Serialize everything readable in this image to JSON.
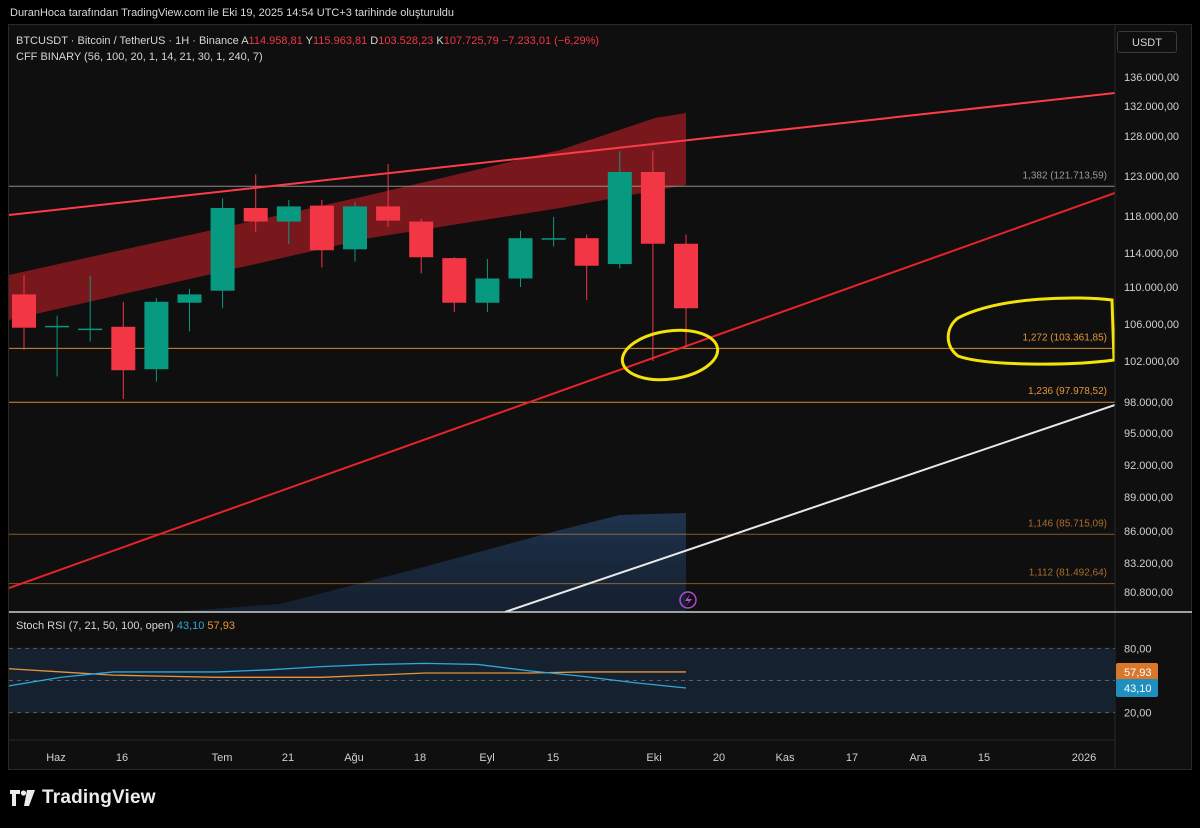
{
  "attribution": "DuranHoca tarafından TradingView.com ile Eki 19, 2025 14:54 UTC+3 tarihinde oluşturuldu",
  "brand": "TradingView",
  "currency_button": "USDT",
  "legend": {
    "symbol": "BTCUSDT · Bitcoin / TetherUS · 1H · Binance",
    "o_label": "A",
    "o_value": "114.958,81",
    "h_label": "Y",
    "h_value": "115.963,81",
    "l_label": "D",
    "l_value": "103.528,23",
    "c_label": "K",
    "c_value": "107.725,79",
    "change": "−7.233,01 (−6,29%)",
    "indicator": "CFF BINARY (56, 100, 20, 1, 14, 21, 30, 1, 240, 7)"
  },
  "stoch_legend": {
    "name": "Stoch RSI (7, 21, 50, 100, open)",
    "k_value": "43,10",
    "d_value": "57,93"
  },
  "colors": {
    "up": "#089981",
    "down": "#f23645",
    "band": "#8b1a1e",
    "trend_red": "#e8232c",
    "fib": "#e8943a",
    "white_line": "#e8e8e8",
    "stoch_k": "#2fa7d9",
    "stoch_d": "#e8943a",
    "highlight_circle": "#f4e20a"
  },
  "chart_data": {
    "type": "candlestick",
    "candles": [
      {
        "o": 109200,
        "h": 111400,
        "l": 103200,
        "c": 105600
      },
      {
        "o": 105700,
        "h": 106900,
        "l": 100500,
        "c": 105800
      },
      {
        "o": 105400,
        "h": 111300,
        "l": 104100,
        "c": 105500
      },
      {
        "o": 105700,
        "h": 108400,
        "l": 98300,
        "c": 101100
      },
      {
        "o": 101200,
        "h": 108800,
        "l": 100000,
        "c": 108400
      },
      {
        "o": 108300,
        "h": 109800,
        "l": 105200,
        "c": 109200
      },
      {
        "o": 109600,
        "h": 120200,
        "l": 107700,
        "c": 119000
      },
      {
        "o": 119000,
        "h": 123200,
        "l": 116300,
        "c": 117400
      },
      {
        "o": 117400,
        "h": 120000,
        "l": 115000,
        "c": 119200
      },
      {
        "o": 119300,
        "h": 120000,
        "l": 112300,
        "c": 114300
      },
      {
        "o": 114400,
        "h": 119700,
        "l": 113000,
        "c": 119200
      },
      {
        "o": 119200,
        "h": 124500,
        "l": 116800,
        "c": 117500
      },
      {
        "o": 117400,
        "h": 117700,
        "l": 111600,
        "c": 113500
      },
      {
        "o": 113400,
        "h": 113500,
        "l": 107300,
        "c": 108300
      },
      {
        "o": 108300,
        "h": 113300,
        "l": 107300,
        "c": 111000
      },
      {
        "o": 111000,
        "h": 116400,
        "l": 110000,
        "c": 115600
      },
      {
        "o": 115500,
        "h": 117900,
        "l": 114700,
        "c": 115600
      },
      {
        "o": 115600,
        "h": 116000,
        "l": 108600,
        "c": 112500
      },
      {
        "o": 112700,
        "h": 126100,
        "l": 112200,
        "c": 123500
      },
      {
        "o": 123500,
        "h": 126200,
        "l": 102000,
        "c": 115000
      },
      {
        "o": 115000,
        "h": 116000,
        "l": 103500,
        "c": 107700
      }
    ],
    "x_labels": [
      "Haz",
      "16",
      "Tem",
      "21",
      "Ağu",
      "18",
      "Eyl",
      "15",
      "Eki",
      "20",
      "Kas",
      "17",
      "Ara",
      "15",
      "2026"
    ],
    "price_ticks": [
      "136.000,00",
      "132.000,00",
      "128.000,00",
      "123.000,00",
      "118.000,00",
      "114.000,00",
      "110.000,00",
      "106.000,00",
      "102.000,00",
      "98.000,00",
      "95.000,00",
      "92.000,00",
      "89.000,00",
      "86.000,00",
      "83.200,00",
      "80.800,00"
    ],
    "fib_levels": [
      {
        "label": "1,382 (121.713,59)",
        "price": 121713.59
      },
      {
        "label": "1,272 (103.361,85)",
        "price": 103361.85
      },
      {
        "label": "1,236 (97.978,52)",
        "price": 97978.52
      },
      {
        "label": "1,146 (85.715,09)",
        "price": 85715.09
      },
      {
        "label": "1,112 (81.492,64)",
        "price": 81492.64
      }
    ],
    "stoch_ticks": [
      "80,00",
      "20,00"
    ],
    "stoch_k_values": [
      45,
      53,
      58,
      58,
      58,
      60,
      63,
      65,
      66,
      65,
      59,
      54,
      48,
      43
    ],
    "stoch_d_values": [
      61,
      58,
      55,
      54,
      53,
      53,
      53,
      55,
      57,
      57,
      57,
      58,
      58,
      58
    ]
  }
}
